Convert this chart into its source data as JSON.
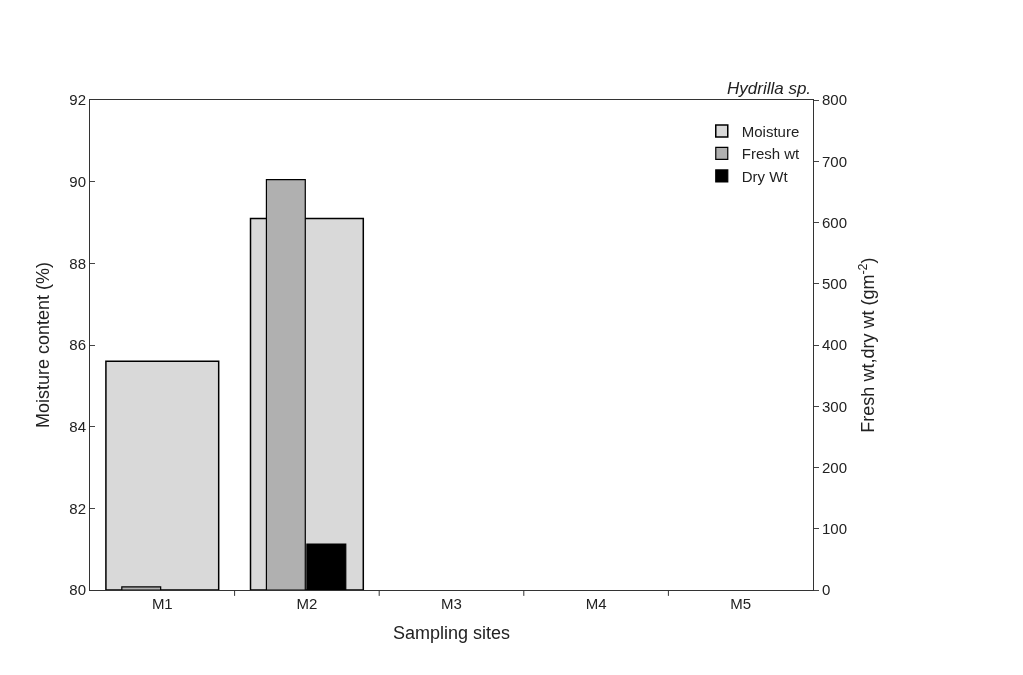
{
  "chart_data": {
    "type": "bar",
    "title": "Hydrilla sp.",
    "xlabel": "Sampling sites",
    "ylabel": "Moisture content (%)",
    "y2label": "Fresh wt,dry wt (gm$^{-2}$)",
    "categories": [
      "M1",
      "M2",
      "M3",
      "M4",
      "M5"
    ],
    "series": [
      {
        "name": "Moisture",
        "color": "#d9d9d9",
        "values": [
          85.6,
          89.1,
          null,
          null,
          null
        ]
      },
      {
        "name": "Fresh wt",
        "color": "#b0b0b0",
        "axis": "y2",
        "values": [
          5,
          670,
          null,
          null,
          null
        ]
      },
      {
        "name": "Dry Wt",
        "color": "#000000",
        "axis": "y2",
        "values": [
          null,
          75,
          null,
          null,
          null
        ]
      }
    ],
    "ylim": [
      80,
      92
    ],
    "yticks": [
      80,
      82,
      84,
      86,
      88,
      90,
      92
    ],
    "y2lim": [
      0,
      800
    ],
    "y2ticks": [
      0,
      100,
      200,
      300,
      400,
      500,
      600,
      700,
      800
    ],
    "legend": "top right"
  }
}
